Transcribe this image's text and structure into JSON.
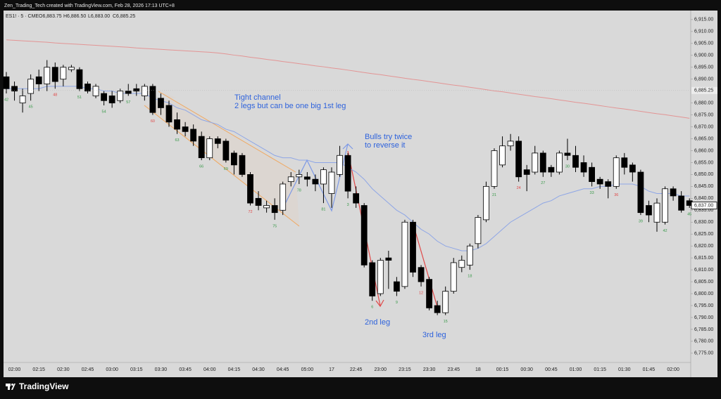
{
  "header": {
    "caption": "Zen_Trading_Tech created with TradingView.com, Feb 28, 2026 17:13 UTC+8",
    "legend": [
      "ES1! · 5 · CME",
      "O6,883.75",
      "H6,886.50",
      "L6,883.00",
      "C6,885.25"
    ]
  },
  "footer": {
    "brand": "TradingView"
  },
  "chart_data": {
    "type": "candlestick",
    "categories": [
      null,
      "02:00",
      null,
      null,
      "02:15",
      null,
      null,
      "02:30",
      null,
      null,
      "02:45",
      null,
      null,
      "03:00",
      null,
      null,
      "03:15",
      null,
      null,
      "03:30",
      null,
      null,
      "03:45",
      null,
      null,
      "04:00",
      null,
      null,
      "04:15",
      null,
      null,
      "04:30",
      null,
      null,
      "04:45",
      null,
      null,
      "05:00",
      null,
      null,
      "17",
      null,
      null,
      "22:45",
      null,
      null,
      "23:00",
      null,
      null,
      "23:15",
      null,
      null,
      "23:30",
      null,
      null,
      "23:45",
      null,
      null,
      "18",
      null,
      null,
      "00:15",
      null,
      null,
      "00:30",
      null,
      null,
      "00:45",
      null,
      null,
      "01:00",
      null,
      null,
      "01:15",
      null,
      null,
      "01:30",
      null,
      null,
      "01:45",
      null,
      null,
      "02:00",
      null,
      null
    ],
    "open": [
      6891,
      6887,
      6880,
      6884,
      6891,
      6888,
      6895,
      6890,
      6894,
      6894,
      6888,
      6883,
      6884,
      6883,
      6881,
      6885,
      6886,
      6883,
      6887,
      6882,
      6879,
      6873,
      6870,
      6869,
      6866,
      6857,
      6865,
      6864,
      6859,
      6858,
      6850,
      6840,
      6836,
      6837,
      6835,
      6847,
      6849,
      6849,
      6848,
      6846,
      6842,
      6850,
      6858,
      6842,
      6837,
      6813,
      6800,
      6815,
      6805,
      6803,
      6830,
      6811,
      6806,
      6795,
      6792,
      6801,
      6811,
      6812,
      6821,
      6831,
      6845,
      6854,
      6862,
      6864,
      6852,
      6851,
      6859,
      6853,
      6851,
      6859,
      6858,
      6855,
      6853,
      6848,
      6847,
      6845,
      6857,
      6854,
      6851,
      6837,
      6830,
      6830,
      6844,
      6841,
      6839
    ],
    "high": [
      6893,
      6889,
      6886,
      6892,
      6894,
      6898,
      6897,
      6896,
      6896,
      6895,
      6889,
      6888,
      6885,
      6885,
      6886,
      6888,
      6888,
      6888,
      6888,
      6884,
      6881,
      6876,
      6872,
      6871,
      6868,
      6866,
      6866,
      6865,
      6860,
      6859,
      6851,
      6843,
      6839,
      6840,
      6847,
      6851,
      6852,
      6851,
      6850,
      6853,
      6853,
      6862,
      6859,
      6845,
      6838,
      6814,
      6815,
      6818,
      6807,
      6831,
      6831,
      6812,
      6807,
      6797,
      6803,
      6815,
      6816,
      6821,
      6833,
      6847,
      6861,
      6866,
      6867,
      6866,
      6854,
      6862,
      6860,
      6854,
      6860,
      6865,
      6862,
      6858,
      6855,
      6849,
      6848,
      6858,
      6859,
      6855,
      6852,
      6839,
      6840,
      6845,
      6845,
      6843,
      6840
    ],
    "low": [
      6884,
      6881,
      6876,
      6881,
      6885,
      6885,
      6886,
      6887,
      6893,
      6885,
      6884,
      6882,
      6879,
      6878,
      6880,
      6883,
      6883,
      6881,
      6875,
      6875,
      6870,
      6867,
      6866,
      6862,
      6856,
      6856,
      6861,
      6855,
      6850,
      6849,
      6837,
      6835,
      6834,
      6831,
      6833,
      6845,
      6846,
      6845,
      6843,
      6838,
      6836,
      6849,
      6840,
      6836,
      6811,
      6797,
      6799,
      6802,
      6799,
      6802,
      6807,
      6803,
      6793,
      6791,
      6791,
      6800,
      6809,
      6810,
      6819,
      6830,
      6844,
      6853,
      6860,
      6847,
      6843,
      6850,
      6849,
      6849,
      6850,
      6856,
      6851,
      6849,
      6845,
      6844,
      6840,
      6844,
      6850,
      6847,
      6833,
      6830,
      6826,
      6829,
      6839,
      6834,
      6836
    ],
    "close": [
      6886,
      6885,
      6883,
      6890,
      6888,
      6895,
      6889,
      6895,
      6895,
      6886,
      6885,
      6887,
      6881,
      6880,
      6885,
      6884,
      6885,
      6887,
      6876,
      6878,
      6872,
      6869,
      6868,
      6864,
      6857,
      6865,
      6863,
      6856,
      6854,
      6850,
      6838,
      6837,
      6837,
      6834,
      6846,
      6849,
      6850,
      6848,
      6846,
      6852,
      6851,
      6858,
      6843,
      6838,
      6812,
      6799,
      6814,
      6814,
      6801,
      6830,
      6809,
      6805,
      6794,
      6792,
      6801,
      6813,
      6814,
      6820,
      6832,
      6845,
      6860,
      6862,
      6864,
      6849,
      6850,
      6859,
      6851,
      6851,
      6859,
      6858,
      6853,
      6851,
      6847,
      6846,
      6845,
      6857,
      6853,
      6851,
      6834,
      6833,
      6838,
      6844,
      6841,
      6835,
      6837
    ],
    "up_color": "#ffffff",
    "down_color": "#000000",
    "wick_color": "#000000",
    "moving_averages": [
      {
        "color": "#8ea6e6",
        "values": [
          6886,
          6886,
          6886,
          6886,
          6886,
          6887,
          6887,
          6887,
          6887,
          6887,
          6886,
          6886,
          6885,
          6885,
          6884,
          6884,
          6884,
          6884,
          6882,
          6881,
          6880,
          6878,
          6877,
          6875,
          6873,
          6872,
          6871,
          6869,
          6868,
          6866,
          6864,
          6862,
          6860,
          6858,
          6857,
          6857,
          6856,
          6856,
          6855,
          6855,
          6855,
          6855,
          6853,
          6851,
          6848,
          6844,
          6841,
          6838,
          6835,
          6833,
          6830,
          6827,
          6825,
          6822,
          6820,
          6819,
          6818,
          6818,
          6819,
          6821,
          6824,
          6827,
          6830,
          6832,
          6834,
          6836,
          6838,
          6839,
          6841,
          6842,
          6843,
          6844,
          6844,
          6845,
          6845,
          6846,
          6846,
          6846,
          6845,
          6843,
          6842,
          6842,
          6842,
          6841,
          6841
        ]
      },
      {
        "color": "#e39494",
        "values": [
          6906.5,
          6906.3,
          6906.1,
          6905.9,
          6905.7,
          6905.5,
          6905.2,
          6905.0,
          6904.8,
          6904.6,
          6904.4,
          6904.2,
          6904.0,
          6903.8,
          6903.6,
          6903.4,
          6903.1,
          6902.9,
          6902.7,
          6902.5,
          6902.3,
          6902.1,
          6901.9,
          6901.7,
          6901.5,
          6901.3,
          6901.0,
          6900.6,
          6900.1,
          6899.7,
          6899.2,
          6898.8,
          6898.3,
          6897.9,
          6897.4,
          6897.0,
          6896.5,
          6896.1,
          6895.6,
          6895.2,
          6894.7,
          6894.3,
          6893.8,
          6893.3,
          6892.8,
          6892.3,
          6891.9,
          6891.4,
          6890.9,
          6890.4,
          6889.9,
          6889.5,
          6889.0,
          6888.5,
          6888.0,
          6887.5,
          6887.1,
          6886.6,
          6886.1,
          6885.6,
          6885.1,
          6884.7,
          6884.2,
          6883.7,
          6883.2,
          6882.7,
          6882.3,
          6881.8,
          6881.3,
          6880.8,
          6880.3,
          6879.9,
          6879.4,
          6878.9,
          6878.4,
          6877.9,
          6877.5,
          6877.0,
          6876.5,
          6876.0,
          6875.5,
          6875.1,
          6874.6,
          6874.1,
          6873.6
        ]
      }
    ],
    "bar_counts": [
      {
        "text": "42",
        "color": "#3a9a4a"
      },
      null,
      null,
      {
        "text": "45",
        "color": "#3a9a4a"
      },
      null,
      null,
      {
        "text": "48",
        "color": "#e04848"
      },
      null,
      null,
      {
        "text": "51",
        "color": "#3a9a4a"
      },
      null,
      null,
      {
        "text": "54",
        "color": "#3a9a4a"
      },
      null,
      null,
      {
        "text": "57",
        "color": "#3a9a4a"
      },
      null,
      null,
      {
        "text": "60",
        "color": "#e04848"
      },
      null,
      null,
      {
        "text": "63",
        "color": "#3a9a4a"
      },
      null,
      null,
      {
        "text": "66",
        "color": "#3a9a4a"
      },
      null,
      null,
      {
        "text": "69",
        "color": "#3a9a4a"
      },
      null,
      null,
      {
        "text": "72",
        "color": "#e04848"
      },
      null,
      null,
      {
        "text": "75",
        "color": "#3a9a4a"
      },
      null,
      null,
      {
        "text": "78",
        "color": "#3a9a4a"
      },
      null,
      null,
      {
        "text": "81",
        "color": "#3a9a4a"
      },
      null,
      null,
      {
        "text": "3",
        "color": "#3a9a4a"
      },
      null,
      null,
      {
        "text": "6",
        "color": "#3a9a4a"
      },
      null,
      null,
      {
        "text": "9",
        "color": "#3a9a4a"
      },
      null,
      null,
      {
        "text": "12",
        "color": "#e04848"
      },
      null,
      null,
      {
        "text": "15",
        "color": "#3a9a4a"
      },
      null,
      null,
      {
        "text": "18",
        "color": "#3a9a4a"
      },
      null,
      null,
      {
        "text": "21",
        "color": "#3a9a4a"
      },
      null,
      null,
      {
        "text": "24",
        "color": "#e04848"
      },
      null,
      null,
      {
        "text": "27",
        "color": "#3a9a4a"
      },
      null,
      null,
      {
        "text": "30",
        "color": "#3a9a4a"
      },
      null,
      null,
      {
        "text": "33",
        "color": "#3a9a4a"
      },
      null,
      null,
      {
        "text": "36",
        "color": "#e04848"
      },
      null,
      null,
      {
        "text": "39",
        "color": "#3a9a4a"
      },
      null,
      null,
      {
        "text": "42",
        "color": "#3a9a4a"
      },
      null,
      null,
      {
        "text": "45",
        "color": "#3a9a4a"
      }
    ],
    "ylim": [
      6772.3,
      6918.8
    ],
    "yticks": [
      {
        "value": 6775,
        "label": "6,775.00"
      },
      {
        "value": 6780,
        "label": "6,780.00"
      },
      {
        "value": 6785,
        "label": "6,785.00"
      },
      {
        "value": 6790,
        "label": "6,790.00"
      },
      {
        "value": 6795,
        "label": "6,795.00"
      },
      {
        "value": 6800,
        "label": "6,800.00"
      },
      {
        "value": 6805,
        "label": "6,805.00"
      },
      {
        "value": 6810,
        "label": "6,810.00"
      },
      {
        "value": 6815,
        "label": "6,815.00"
      },
      {
        "value": 6820,
        "label": "6,820.00"
      },
      {
        "value": 6825,
        "label": "6,825.00"
      },
      {
        "value": 6830,
        "label": "6,830.00"
      },
      {
        "value": 6835,
        "label": "6,835.00"
      },
      {
        "value": 6840,
        "label": "6,840.00"
      },
      {
        "value": 6845,
        "label": "6,845.00"
      },
      {
        "value": 6850,
        "label": "6,850.00"
      },
      {
        "value": 6855,
        "label": "6,855.00"
      },
      {
        "value": 6860,
        "label": "6,860.00"
      },
      {
        "value": 6865,
        "label": "6,865.00"
      },
      {
        "value": 6870,
        "label": "6,870.00"
      },
      {
        "value": 6875,
        "label": "6,875.00"
      },
      {
        "value": 6880,
        "label": "6,880.00"
      },
      {
        "value": 6890,
        "label": "6,890.00"
      },
      {
        "value": 6895,
        "label": "6,895.00"
      },
      {
        "value": 6900,
        "label": "6,900.00"
      },
      {
        "value": 6905,
        "label": "6,905.00"
      },
      {
        "value": 6910,
        "label": "6,910.00"
      },
      {
        "value": 6915,
        "label": "6,915.00"
      }
    ],
    "price_markers": [
      {
        "value": 6885.25,
        "label": "6,885.25"
      },
      {
        "value": 6837,
        "label": "6,837.00"
      }
    ],
    "grid": false,
    "annotations": [
      "Tight channel",
      "2 legs but can be one big 1st leg",
      "Bulls try twice",
      "to reverse it",
      "2nd leg",
      "3rd leg"
    ],
    "annotation_color": "#2f63dc"
  }
}
